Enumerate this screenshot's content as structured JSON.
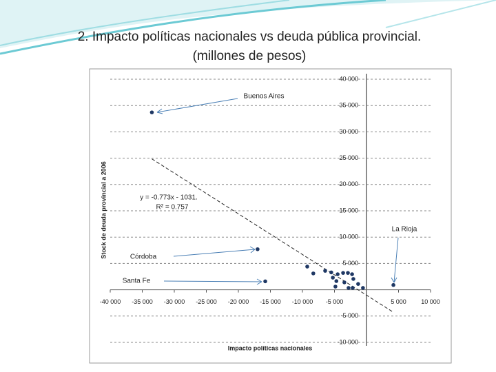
{
  "title": "2. Impacto políticas nacionales vs deuda pública provincial.",
  "subtitle": "(millones de pesos)",
  "chart_data": {
    "type": "scatter",
    "x_label": "Impacto políticas nacionales",
    "y_label": "Stock de deuda provincial a 2006",
    "color": "#1f3864",
    "x": [
      -33500,
      -17000,
      -15800,
      4200,
      -9250,
      -8300,
      -6450,
      -5500,
      -5250,
      -4700,
      -4500,
      -3650,
      -2900,
      -2250,
      -2050,
      -3450,
      -2800,
      -2150,
      -1300,
      -550,
      -4850
    ],
    "values": [
      33700,
      7700,
      1600,
      900,
      4400,
      3100,
      3600,
      3300,
      2300,
      1650,
      2950,
      3200,
      3200,
      2950,
      2050,
      1400,
      350,
      350,
      1100,
      350,
      600
    ],
    "xlim": [
      -40000,
      10000
    ],
    "ylim": [
      -10000,
      40000
    ],
    "xticks": [
      {
        "value": -40000,
        "label": "-40 000"
      },
      {
        "value": -35000,
        "label": "-35 000"
      },
      {
        "value": -30000,
        "label": "-30 000"
      },
      {
        "value": -25000,
        "label": "-25 000"
      },
      {
        "value": -20000,
        "label": "-20 000"
      },
      {
        "value": -15000,
        "label": "-15 000"
      },
      {
        "value": -10000,
        "label": "-10 000"
      },
      {
        "value": -5000,
        "label": "-5 000"
      },
      {
        "value": 5000,
        "label": "5 000"
      },
      {
        "value": 10000,
        "label": "10 000"
      }
    ],
    "yticks": [
      {
        "value": -10000,
        "label": "-10 000"
      },
      {
        "value": -5000,
        "label": "-5 000"
      },
      {
        "value": 5000,
        "label": "5 000"
      },
      {
        "value": 10000,
        "label": "10 000"
      },
      {
        "value": 15000,
        "label": "15 000"
      },
      {
        "value": 20000,
        "label": "20 000"
      },
      {
        "value": 25000,
        "label": "25 000"
      },
      {
        "value": 30000,
        "label": "30 000"
      },
      {
        "value": 35000,
        "label": "35 000"
      },
      {
        "value": 40000,
        "label": "40 000"
      }
    ],
    "grid": true,
    "trendline": {
      "slope": -0.773,
      "intercept": -1031,
      "equation": "y = -0.773x - 1031.",
      "r2": "R² = 0.757"
    },
    "annotations": [
      "Buenos Aires",
      "Córdoba",
      "Santa Fe",
      "La Rioja"
    ]
  }
}
